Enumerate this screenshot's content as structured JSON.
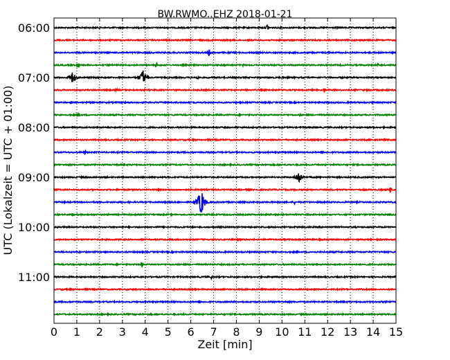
{
  "chart_data": {
    "type": "line",
    "title": "BW.RWMO..EHZ 2018-01-21",
    "xlabel": "Zeit  [min]",
    "ylabel": "UTC (Lokalzeit = UTC + 01:00)",
    "xlim": [
      0,
      15
    ],
    "x_ticks": [
      0,
      1,
      2,
      3,
      4,
      5,
      6,
      7,
      8,
      9,
      10,
      11,
      12,
      13,
      14,
      15
    ],
    "x_grid": "dotted",
    "y_tick_labels": [
      "06:00",
      "07:00",
      "08:00",
      "09:00",
      "10:00",
      "11:00"
    ],
    "trace_interval_min": 15,
    "trace_colors": [
      "#000000",
      "#ff0000",
      "#0000ff",
      "#008000"
    ],
    "traces": [
      {
        "start": "06:00",
        "color": "#000000",
        "events": [
          {
            "t": 9.35,
            "amp": 6
          }
        ]
      },
      {
        "start": "06:15",
        "color": "#ff0000",
        "events": []
      },
      {
        "start": "06:30",
        "color": "#0000ff",
        "events": [
          {
            "t": 6.8,
            "amp": 6
          },
          {
            "t": 12.0,
            "amp": 4
          }
        ]
      },
      {
        "start": "06:45",
        "color": "#008000",
        "events": [
          {
            "t": 1.05,
            "amp": 5
          },
          {
            "t": 4.5,
            "amp": 5
          },
          {
            "t": 8.3,
            "amp": 3
          },
          {
            "t": 14.2,
            "amp": 3
          }
        ]
      },
      {
        "start": "07:00",
        "color": "#000000",
        "events": [
          {
            "t": 0.8,
            "amp": 10
          },
          {
            "t": 3.9,
            "amp": 12
          },
          {
            "t": 6.3,
            "amp": 4
          }
        ]
      },
      {
        "start": "07:15",
        "color": "#ff0000",
        "events": [
          {
            "t": 2.75,
            "amp": 3
          },
          {
            "t": 11.85,
            "amp": 4
          }
        ]
      },
      {
        "start": "07:30",
        "color": "#0000ff",
        "events": []
      },
      {
        "start": "07:45",
        "color": "#008000",
        "events": [
          {
            "t": 1.1,
            "amp": 3
          },
          {
            "t": 10.8,
            "amp": 3
          }
        ]
      },
      {
        "start": "08:00",
        "color": "#000000",
        "events": []
      },
      {
        "start": "08:15",
        "color": "#ff0000",
        "events": []
      },
      {
        "start": "08:30",
        "color": "#0000ff",
        "events": [
          {
            "t": 1.35,
            "amp": 4
          }
        ]
      },
      {
        "start": "08:45",
        "color": "#008000",
        "events": []
      },
      {
        "start": "09:00",
        "color": "#000000",
        "events": [
          {
            "t": 10.75,
            "amp": 10
          }
        ]
      },
      {
        "start": "09:15",
        "color": "#ff0000",
        "events": [
          {
            "t": 14.75,
            "amp": 5
          }
        ]
      },
      {
        "start": "09:30",
        "color": "#0000ff",
        "events": [
          {
            "t": 6.45,
            "amp": 22
          },
          {
            "t": 10.55,
            "amp": 3
          }
        ]
      },
      {
        "start": "09:45",
        "color": "#008000",
        "events": [
          {
            "t": 9.5,
            "amp": 3
          }
        ]
      },
      {
        "start": "10:00",
        "color": "#000000",
        "events": []
      },
      {
        "start": "10:15",
        "color": "#ff0000",
        "events": []
      },
      {
        "start": "10:30",
        "color": "#0000ff",
        "events": []
      },
      {
        "start": "10:45",
        "color": "#008000",
        "events": [
          {
            "t": 3.85,
            "amp": 5
          }
        ]
      },
      {
        "start": "11:00",
        "color": "#000000",
        "events": [
          {
            "t": 6.9,
            "amp": 3
          }
        ]
      },
      {
        "start": "11:15",
        "color": "#ff0000",
        "events": []
      },
      {
        "start": "11:30",
        "color": "#0000ff",
        "events": []
      },
      {
        "start": "11:45",
        "color": "#008000",
        "events": []
      }
    ]
  }
}
